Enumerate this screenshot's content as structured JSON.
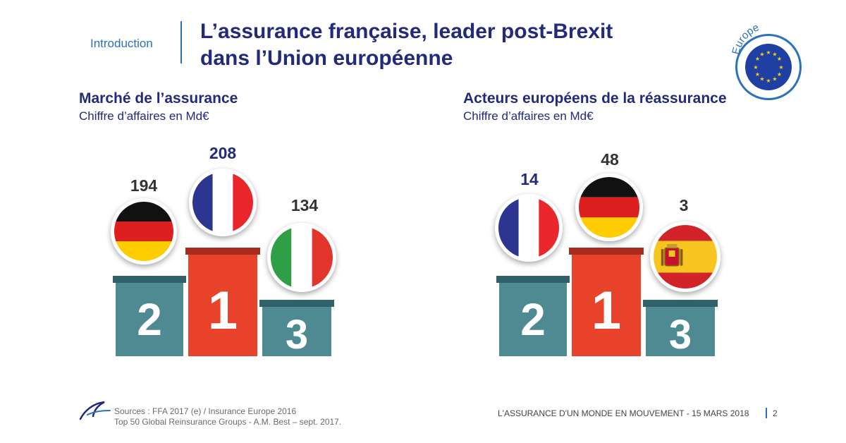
{
  "header": {
    "section": "Introduction",
    "title_line1": "L’assurance française, leader post-Brexit",
    "title_line2": "dans l’Union européenne",
    "badge": "Europe"
  },
  "panels": [
    {
      "title": "Marché de l’assurance",
      "subtitle": "Chiffre d’affaires en Md€",
      "entries": [
        {
          "rank": "2",
          "country": "Allemagne",
          "value": "194",
          "flag": "germany-flag"
        },
        {
          "rank": "1",
          "country": "France",
          "value": "208",
          "flag": "france-flag"
        },
        {
          "rank": "3",
          "country": "Italie",
          "value": "134",
          "flag": "italy-flag"
        }
      ]
    },
    {
      "title": "Acteurs européens de la réassurance",
      "subtitle": "Chiffre d’affaires en Md€",
      "entries": [
        {
          "rank": "2",
          "country": "France",
          "value": "14",
          "flag": "france-flag"
        },
        {
          "rank": "1",
          "country": "Allemagne",
          "value": "48",
          "flag": "germany-flag"
        },
        {
          "rank": "3",
          "country": "Espagne",
          "value": "3",
          "flag": "spain-flag"
        }
      ]
    }
  ],
  "footer": {
    "source_line1": "Sources : FFA 2017 (e) / Insurance Europe 2016",
    "source_line2": "Top 50 Global Reinsurance Groups - A.M. Best – sept. 2017.",
    "event": "L'ASSURANCE D'UN MONDE EN MOUVEMENT - 15 MARS 2018",
    "page": "2"
  },
  "colors": {
    "navy": "#222a7a",
    "blue": "#2a73b8",
    "teal": "#4f8a92",
    "teal_top": "#2f6169",
    "red": "#e8422b",
    "red_top": "#a82d1e"
  }
}
